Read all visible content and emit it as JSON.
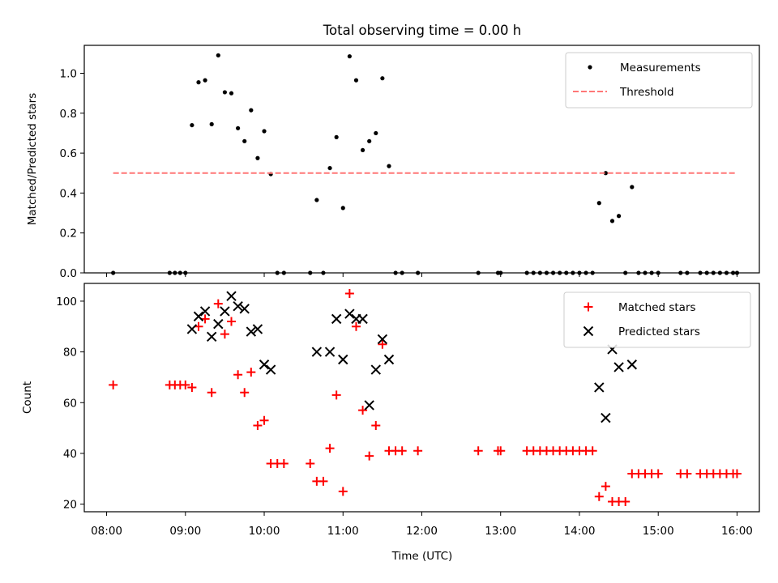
{
  "figure_title": "Total observing time = 0.00 h",
  "colors": {
    "measurement": "#000000",
    "threshold": "#ff7777",
    "matched": "#ff0000",
    "predicted": "#000000"
  },
  "chart_data": [
    {
      "type": "scatter",
      "ylabel": "Matched/Predicted stars",
      "ylim": [
        0,
        1.14
      ],
      "yticks": [
        0.0,
        0.2,
        0.4,
        0.6,
        0.8,
        1.0
      ],
      "ytick_labels": [
        "0.0",
        "0.2",
        "0.4",
        "0.6",
        "0.8",
        "1.0"
      ],
      "xlim": [
        "07:43",
        "16:17"
      ],
      "legend_position": "top-right",
      "series": [
        {
          "name": "Measurements",
          "marker": "dot",
          "points": [
            [
              "08:05",
              0.0
            ],
            [
              "08:48",
              0.0
            ],
            [
              "08:52",
              0.0
            ],
            [
              "08:56",
              0.0
            ],
            [
              "09:00",
              0.0
            ],
            [
              "09:05",
              0.74
            ],
            [
              "09:10",
              0.955
            ],
            [
              "09:15",
              0.965
            ],
            [
              "09:20",
              0.745
            ],
            [
              "09:25",
              1.09
            ],
            [
              "09:30",
              0.905
            ],
            [
              "09:35",
              0.9
            ],
            [
              "09:40",
              0.725
            ],
            [
              "09:45",
              0.66
            ],
            [
              "09:50",
              0.815
            ],
            [
              "09:55",
              0.575
            ],
            [
              "10:00",
              0.71
            ],
            [
              "10:05",
              0.495
            ],
            [
              "10:10",
              0.0
            ],
            [
              "10:15",
              0.0
            ],
            [
              "10:35",
              0.0
            ],
            [
              "10:40",
              0.365
            ],
            [
              "10:45",
              0.0
            ],
            [
              "10:50",
              0.525
            ],
            [
              "10:55",
              0.68
            ],
            [
              "11:00",
              0.325
            ],
            [
              "11:05",
              1.085
            ],
            [
              "11:10",
              0.965
            ],
            [
              "11:15",
              0.615
            ],
            [
              "11:20",
              0.66
            ],
            [
              "11:25",
              0.7
            ],
            [
              "11:30",
              0.975
            ],
            [
              "11:35",
              0.535
            ],
            [
              "11:40",
              0.0
            ],
            [
              "11:45",
              0.0
            ],
            [
              "11:57",
              0.0
            ],
            [
              "12:43",
              0.0
            ],
            [
              "12:58",
              0.0
            ],
            [
              "13:00",
              0.0
            ],
            [
              "13:20",
              0.0
            ],
            [
              "13:25",
              0.0
            ],
            [
              "13:30",
              0.0
            ],
            [
              "13:35",
              0.0
            ],
            [
              "13:40",
              0.0
            ],
            [
              "13:45",
              0.0
            ],
            [
              "13:50",
              0.0
            ],
            [
              "13:55",
              0.0
            ],
            [
              "14:00",
              0.0
            ],
            [
              "14:05",
              0.0
            ],
            [
              "14:10",
              0.0
            ],
            [
              "14:15",
              0.35
            ],
            [
              "14:20",
              0.5
            ],
            [
              "14:25",
              0.26
            ],
            [
              "14:30",
              0.285
            ],
            [
              "14:35",
              0.0
            ],
            [
              "14:40",
              0.43
            ],
            [
              "14:45",
              0.0
            ],
            [
              "14:50",
              0.0
            ],
            [
              "14:55",
              0.0
            ],
            [
              "15:00",
              0.0
            ],
            [
              "15:17",
              0.0
            ],
            [
              "15:22",
              0.0
            ],
            [
              "15:32",
              0.0
            ],
            [
              "15:37",
              0.0
            ],
            [
              "15:42",
              0.0
            ],
            [
              "15:47",
              0.0
            ],
            [
              "15:52",
              0.0
            ],
            [
              "15:57",
              0.0
            ],
            [
              "16:00",
              0.0
            ]
          ]
        },
        {
          "name": "Threshold",
          "marker": "dashed-line",
          "points": [
            [
              "08:05",
              0.5
            ],
            [
              "16:00",
              0.5
            ]
          ]
        }
      ]
    },
    {
      "type": "scatter",
      "xlabel": "Time (UTC)",
      "ylabel": "Count",
      "ylim": [
        17,
        107
      ],
      "yticks": [
        20,
        40,
        60,
        80,
        100
      ],
      "ytick_labels": [
        "20",
        "40",
        "60",
        "80",
        "100"
      ],
      "xlim": [
        "07:43",
        "16:17"
      ],
      "xticks": [
        "08:00",
        "09:00",
        "10:00",
        "11:00",
        "12:00",
        "13:00",
        "14:00",
        "15:00",
        "16:00"
      ],
      "xtick_labels": [
        "08:00",
        "09:00",
        "10:00",
        "11:00",
        "12:00",
        "13:00",
        "14:00",
        "15:00",
        "16:00"
      ],
      "legend_position": "top-right",
      "series": [
        {
          "name": "Matched stars",
          "marker": "plus",
          "points": [
            [
              "08:05",
              67
            ],
            [
              "08:48",
              67
            ],
            [
              "08:52",
              67
            ],
            [
              "08:56",
              67
            ],
            [
              "09:00",
              67
            ],
            [
              "09:05",
              66
            ],
            [
              "09:10",
              90
            ],
            [
              "09:15",
              93
            ],
            [
              "09:20",
              64
            ],
            [
              "09:25",
              99
            ],
            [
              "09:30",
              87
            ],
            [
              "09:35",
              92
            ],
            [
              "09:40",
              71
            ],
            [
              "09:45",
              64
            ],
            [
              "09:50",
              72
            ],
            [
              "09:55",
              51
            ],
            [
              "10:00",
              53
            ],
            [
              "10:05",
              36
            ],
            [
              "10:10",
              36
            ],
            [
              "10:15",
              36
            ],
            [
              "10:35",
              36
            ],
            [
              "10:40",
              29
            ],
            [
              "10:45",
              29
            ],
            [
              "10:50",
              42
            ],
            [
              "10:55",
              63
            ],
            [
              "11:00",
              25
            ],
            [
              "11:05",
              103
            ],
            [
              "11:10",
              90
            ],
            [
              "11:15",
              57
            ],
            [
              "11:20",
              39
            ],
            [
              "11:25",
              51
            ],
            [
              "11:30",
              83
            ],
            [
              "11:35",
              41
            ],
            [
              "11:40",
              41
            ],
            [
              "11:45",
              41
            ],
            [
              "11:57",
              41
            ],
            [
              "12:43",
              41
            ],
            [
              "12:58",
              41
            ],
            [
              "13:00",
              41
            ],
            [
              "13:20",
              41
            ],
            [
              "13:25",
              41
            ],
            [
              "13:30",
              41
            ],
            [
              "13:35",
              41
            ],
            [
              "13:40",
              41
            ],
            [
              "13:45",
              41
            ],
            [
              "13:50",
              41
            ],
            [
              "13:55",
              41
            ],
            [
              "14:00",
              41
            ],
            [
              "14:05",
              41
            ],
            [
              "14:10",
              41
            ],
            [
              "14:15",
              23
            ],
            [
              "14:20",
              27
            ],
            [
              "14:25",
              21
            ],
            [
              "14:30",
              21
            ],
            [
              "14:35",
              21
            ],
            [
              "14:40",
              32
            ],
            [
              "14:45",
              32
            ],
            [
              "14:50",
              32
            ],
            [
              "14:55",
              32
            ],
            [
              "15:00",
              32
            ],
            [
              "15:17",
              32
            ],
            [
              "15:22",
              32
            ],
            [
              "15:32",
              32
            ],
            [
              "15:37",
              32
            ],
            [
              "15:42",
              32
            ],
            [
              "15:47",
              32
            ],
            [
              "15:52",
              32
            ],
            [
              "15:57",
              32
            ],
            [
              "16:00",
              32
            ]
          ]
        },
        {
          "name": "Predicted stars",
          "marker": "x",
          "points": [
            [
              "09:05",
              89
            ],
            [
              "09:10",
              94
            ],
            [
              "09:15",
              96
            ],
            [
              "09:20",
              86
            ],
            [
              "09:25",
              91
            ],
            [
              "09:30",
              96
            ],
            [
              "09:35",
              102
            ],
            [
              "09:40",
              98
            ],
            [
              "09:45",
              97
            ],
            [
              "09:50",
              88
            ],
            [
              "09:55",
              89
            ],
            [
              "10:00",
              75
            ],
            [
              "10:05",
              73
            ],
            [
              "10:40",
              80
            ],
            [
              "10:50",
              80
            ],
            [
              "10:55",
              93
            ],
            [
              "11:00",
              77
            ],
            [
              "11:05",
              95
            ],
            [
              "11:10",
              93
            ],
            [
              "11:15",
              93
            ],
            [
              "11:20",
              59
            ],
            [
              "11:25",
              73
            ],
            [
              "11:30",
              85
            ],
            [
              "11:35",
              77
            ],
            [
              "14:15",
              66
            ],
            [
              "14:20",
              54
            ],
            [
              "14:25",
              81
            ],
            [
              "14:30",
              74
            ],
            [
              "14:40",
              75
            ]
          ]
        }
      ]
    }
  ]
}
